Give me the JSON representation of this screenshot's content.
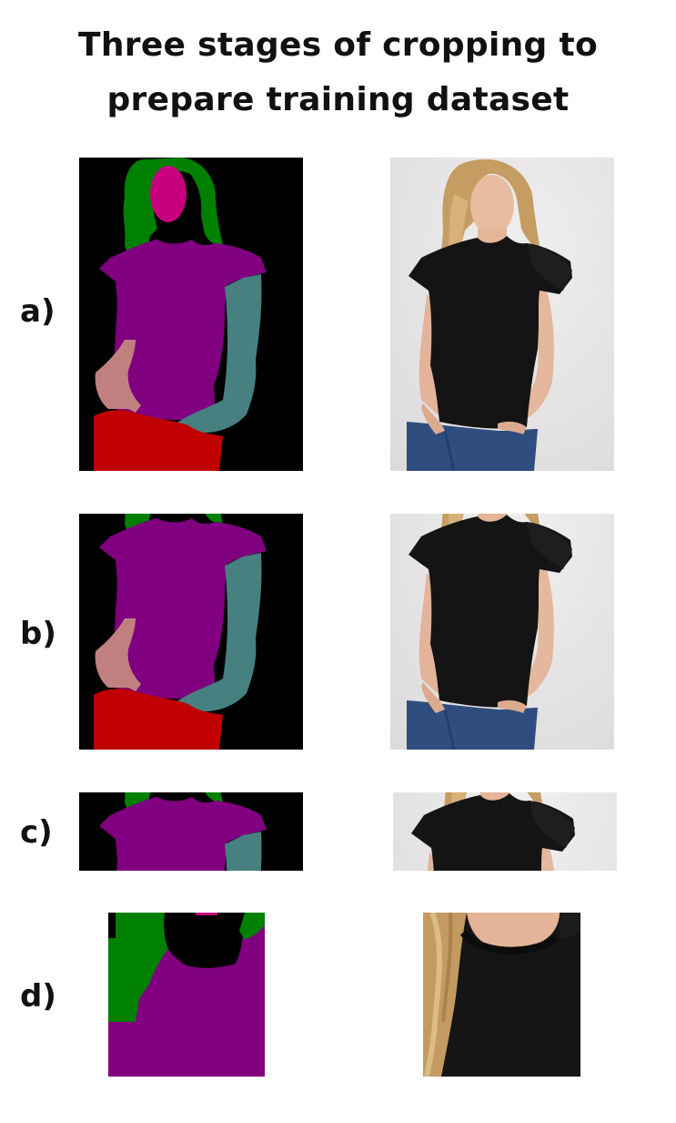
{
  "title": {
    "line1": "Three stages of cropping to",
    "line2": "prepare training dataset"
  },
  "rows": [
    {
      "label": "a)"
    },
    {
      "label": "b)"
    },
    {
      "label": "c)"
    },
    {
      "label": "d)"
    }
  ],
  "colors": {
    "background": "#000000",
    "hair": "#008000",
    "face": "#c8007e",
    "shirt": "#800080",
    "right_arm": "#468080",
    "left_hand": "#c08080",
    "pants": "#c00000",
    "photo_bg": "#e9e7e8",
    "photo_shirt": "#121212",
    "photo_skin": "#e6b59a",
    "photo_hair": "#caa36a",
    "photo_jeans": "#2f4d7e"
  }
}
